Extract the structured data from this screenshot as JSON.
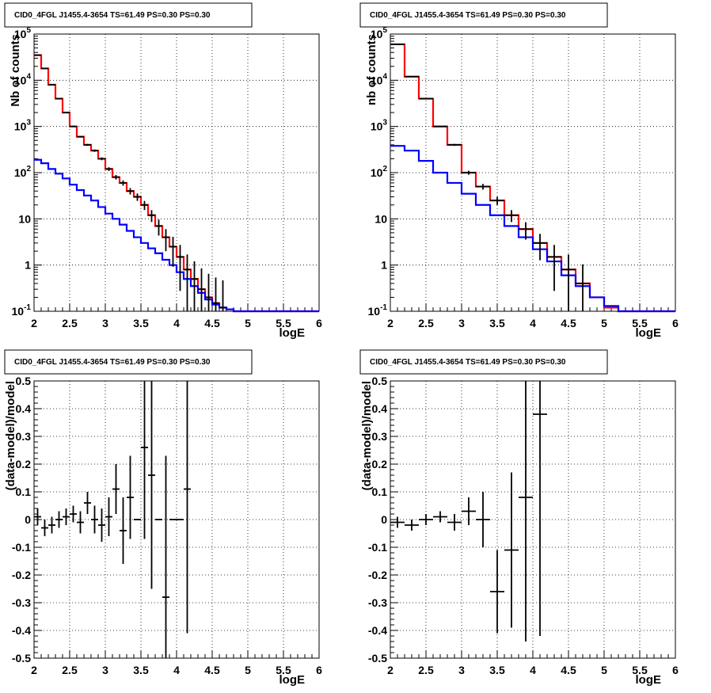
{
  "chart_data": [
    {
      "id": "top-left",
      "type": "step",
      "title": "CID0_4FGL J1455.4-3654 TS=61.49 PS=0.30 PS=0.30",
      "xlabel": "logE",
      "ylabel": "Nb of counts",
      "xlim": [
        2,
        6
      ],
      "ylim": [
        0.1,
        100000
      ],
      "log_y": true,
      "grid": true,
      "x_ticks": [
        "2",
        "2.5",
        "3",
        "3.5",
        "4",
        "4.5",
        "5",
        "5.5",
        "6"
      ],
      "y_ticks": [
        "10^-1",
        "1",
        "10",
        "10^2",
        "10^3",
        "10^4",
        "10^5"
      ],
      "bin_width": 0.1,
      "series": [
        {
          "color": "#ff0000",
          "x_start": [
            2.0,
            2.1,
            2.2,
            2.3,
            2.4,
            2.5,
            2.6,
            2.7,
            2.8,
            2.9,
            3.0,
            3.1,
            3.2,
            3.3,
            3.4,
            3.5,
            3.6,
            3.7,
            3.8,
            3.9,
            4.0,
            4.1,
            4.2,
            4.3,
            4.4,
            4.5,
            4.6,
            4.7,
            4.8,
            4.9,
            5.0,
            5.1,
            5.2,
            5.3,
            5.4,
            5.5,
            5.6,
            5.7,
            5.8,
            5.9
          ],
          "values": [
            35000,
            18000,
            8000,
            4000,
            2000,
            1000,
            600,
            400,
            300,
            200,
            120,
            80,
            60,
            40,
            30,
            20,
            12,
            7,
            4,
            2.5,
            1.5,
            0.8,
            0.5,
            0.3,
            0.2,
            0.15,
            0.12,
            0.11,
            0.1,
            0.1,
            0.1,
            0.1,
            0.1,
            0.1,
            0.1,
            0.1,
            0.1,
            0.1,
            0.1,
            0.1
          ]
        },
        {
          "color": "#0000ff",
          "x_start": [
            2.0,
            2.1,
            2.2,
            2.3,
            2.4,
            2.5,
            2.6,
            2.7,
            2.8,
            2.9,
            3.0,
            3.1,
            3.2,
            3.3,
            3.4,
            3.5,
            3.6,
            3.7,
            3.8,
            3.9,
            4.0,
            4.1,
            4.2,
            4.3,
            4.4,
            4.5,
            4.6,
            4.7,
            4.8,
            4.9,
            5.0,
            5.1,
            5.2,
            5.3,
            5.4,
            5.5,
            5.6,
            5.7,
            5.8,
            5.9
          ],
          "values": [
            190,
            160,
            120,
            95,
            75,
            55,
            42,
            32,
            25,
            18,
            13,
            10,
            7.5,
            5.5,
            4,
            3,
            2.3,
            1.8,
            1.3,
            1,
            0.7,
            0.5,
            0.35,
            0.25,
            0.18,
            0.14,
            0.12,
            0.11,
            0.1,
            0.1,
            0.1,
            0.1,
            0.1,
            0.1,
            0.1,
            0.1,
            0.1,
            0.1,
            0.1,
            0.1
          ]
        }
      ],
      "data_points": {
        "x": [
          2.05,
          2.15,
          2.25,
          2.35,
          2.45,
          2.55,
          2.65,
          2.75,
          2.85,
          2.95,
          3.05,
          3.15,
          3.25,
          3.35,
          3.45,
          3.55,
          3.65,
          3.75,
          3.85,
          3.95,
          4.05,
          4.15,
          4.25,
          4.35,
          4.45,
          4.55,
          4.65
        ],
        "y": [
          35000,
          18000,
          8000,
          4000,
          2000,
          1000,
          600,
          400,
          300,
          200,
          120,
          80,
          60,
          40,
          30,
          20,
          12,
          7,
          4,
          2.5,
          1.5,
          0.8,
          0.5,
          0.3,
          0.2,
          0.15,
          0.12
        ],
        "x_err": 0.05
      }
    },
    {
      "id": "top-right",
      "type": "step",
      "title": "CID0_4FGL J1455.4-3654 TS=61.49 PS=0.30 PS=0.30",
      "xlabel": "logE",
      "ylabel": "nb of counts",
      "xlim": [
        2,
        6
      ],
      "ylim": [
        0.1,
        100000
      ],
      "log_y": true,
      "grid": true,
      "x_ticks": [
        "2",
        "2.5",
        "3",
        "3.5",
        "4",
        "4.5",
        "5",
        "5.5",
        "6"
      ],
      "y_ticks": [
        "10^-1",
        "1",
        "10",
        "10^2",
        "10^3",
        "10^4",
        "10^5"
      ],
      "bin_width": 0.2,
      "series": [
        {
          "color": "#ff0000",
          "x_start": [
            2.0,
            2.2,
            2.4,
            2.6,
            2.8,
            3.0,
            3.2,
            3.4,
            3.6,
            3.8,
            4.0,
            4.2,
            4.4,
            4.6,
            4.8,
            5.0,
            5.2,
            5.4,
            5.6,
            5.8
          ],
          "values": [
            60000,
            12000,
            4000,
            1000,
            400,
            100,
            50,
            25,
            12,
            6,
            3,
            1.5,
            0.8,
            0.4,
            0.2,
            0.12,
            0.1,
            0.1,
            0.1,
            0.1
          ]
        },
        {
          "color": "#0000ff",
          "x_start": [
            2.0,
            2.2,
            2.4,
            2.6,
            2.8,
            3.0,
            3.2,
            3.4,
            3.6,
            3.8,
            4.0,
            4.2,
            4.4,
            4.6,
            4.8,
            5.0,
            5.2,
            5.4,
            5.6,
            5.8
          ],
          "values": [
            380,
            300,
            180,
            100,
            60,
            35,
            20,
            12,
            7,
            4,
            2.2,
            1.2,
            0.6,
            0.35,
            0.2,
            0.13,
            0.1,
            0.1,
            0.1,
            0.1
          ]
        }
      ],
      "data_points": {
        "x": [
          2.1,
          2.3,
          2.5,
          2.7,
          2.9,
          3.1,
          3.3,
          3.5,
          3.7,
          3.9,
          4.1,
          4.3,
          4.5,
          4.7
        ],
        "y": [
          60000,
          12000,
          4000,
          1000,
          400,
          100,
          50,
          25,
          12,
          6,
          3,
          1.5,
          0.8,
          0.4
        ],
        "x_err": 0.1
      }
    },
    {
      "id": "bottom-left",
      "type": "scatter",
      "title": "CID0_4FGL J1455.4-3654 TS=61.49 PS=0.30 PS=0.30",
      "xlabel": "logE",
      "ylabel": "(data-model)/model",
      "xlim": [
        2,
        6
      ],
      "ylim": [
        -0.5,
        0.5
      ],
      "log_y": false,
      "grid": true,
      "x_ticks": [
        "2",
        "2.5",
        "3",
        "3.5",
        "4",
        "4.5",
        "5",
        "5.5",
        "6"
      ],
      "y_ticks": [
        "-0.5",
        "-0.4",
        "-0.3",
        "-0.2",
        "-0.1",
        "0",
        "0.1",
        "0.2",
        "0.3",
        "0.4",
        "0.5"
      ],
      "data_points": {
        "x": [
          2.05,
          2.15,
          2.25,
          2.35,
          2.45,
          2.55,
          2.65,
          2.75,
          2.85,
          2.95,
          3.05,
          3.15,
          3.25,
          3.35,
          3.45,
          3.55,
          3.65,
          3.75,
          3.85,
          3.95,
          4.05,
          4.15
        ],
        "y": [
          0.01,
          -0.03,
          -0.02,
          0.0,
          0.01,
          0.02,
          -0.01,
          0.06,
          0.0,
          -0.02,
          0.01,
          0.11,
          -0.04,
          0.08,
          0.0,
          0.26,
          0.16,
          0.0,
          -0.28,
          0.0,
          0.0,
          0.11
        ],
        "y_err": [
          0.03,
          0.03,
          0.03,
          0.03,
          0.03,
          0.03,
          0.04,
          0.04,
          0.05,
          0.06,
          0.07,
          0.09,
          0.12,
          0.15,
          0.0,
          0.33,
          0.41,
          0.0,
          0.51,
          0.0,
          0.0,
          0.52
        ],
        "x_err": 0.05
      }
    },
    {
      "id": "bottom-right",
      "type": "scatter",
      "title": "CID0_4FGL J1455.4-3654 TS=61.49 PS=0.30 PS=0.30",
      "xlabel": "logE",
      "ylabel": "(data-model)/model",
      "xlim": [
        2,
        6
      ],
      "ylim": [
        -0.5,
        0.5
      ],
      "log_y": false,
      "grid": true,
      "x_ticks": [
        "2",
        "2.5",
        "3",
        "3.5",
        "4",
        "4.5",
        "5",
        "5.5",
        "6"
      ],
      "y_ticks": [
        "-0.5",
        "-0.4",
        "-0.3",
        "-0.2",
        "-0.1",
        "0",
        "0.1",
        "0.2",
        "0.3",
        "0.4",
        "0.5"
      ],
      "data_points": {
        "x": [
          2.1,
          2.3,
          2.5,
          2.7,
          2.9,
          3.1,
          3.3,
          3.5,
          3.7,
          3.9,
          4.1
        ],
        "y": [
          -0.01,
          -0.02,
          0.0,
          0.01,
          -0.01,
          0.03,
          0.0,
          -0.26,
          -0.11,
          0.08,
          0.38
        ],
        "y_err": [
          0.02,
          0.02,
          0.02,
          0.02,
          0.03,
          0.05,
          0.1,
          0.15,
          0.28,
          0.52,
          0.8
        ],
        "x_err": 0.1
      }
    }
  ]
}
